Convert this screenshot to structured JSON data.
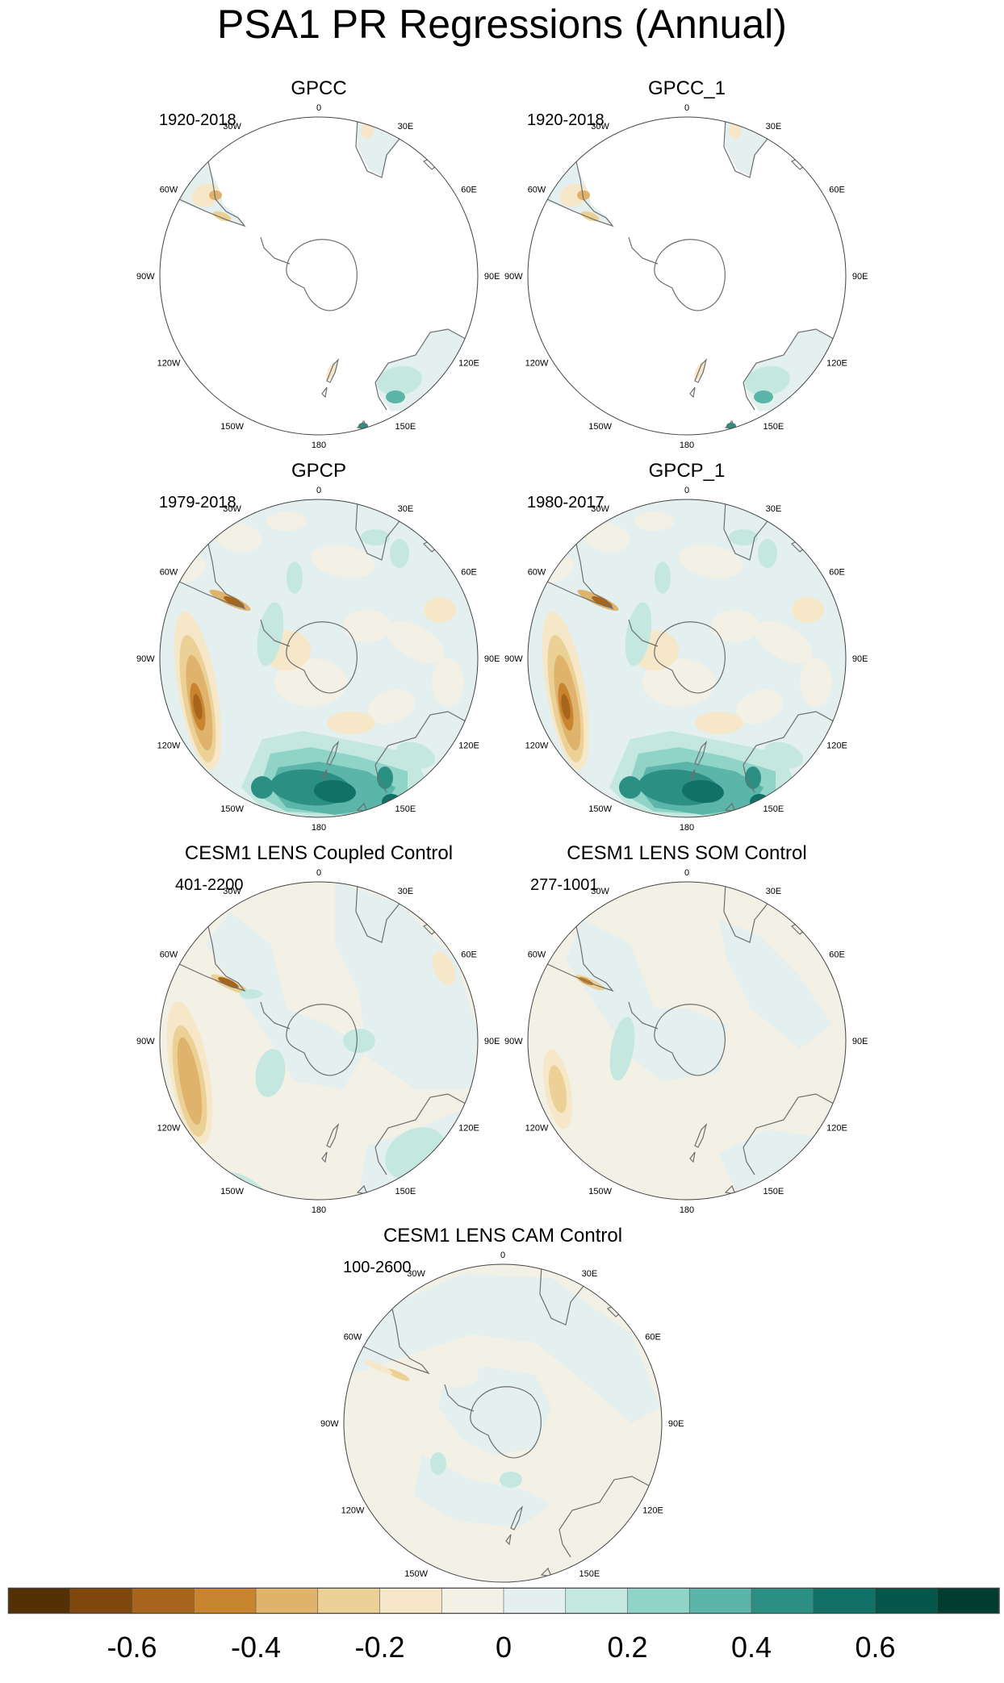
{
  "title": "PSA1 PR Regressions (Annual)",
  "lon_labels": [
    "0",
    "30E",
    "60E",
    "90E",
    "120E",
    "150E",
    "180",
    "150W",
    "120W",
    "90W",
    "60W",
    "30W"
  ],
  "panels": [
    {
      "id": "gpcc",
      "title": "GPCC",
      "period": "1920-2018",
      "pattern": "gpcc"
    },
    {
      "id": "gpcc_1",
      "title": "GPCC_1",
      "period": "1920-2018",
      "pattern": "gpcc"
    },
    {
      "id": "gpcp",
      "title": "GPCP",
      "period": "1979-2018",
      "pattern": "gpcp"
    },
    {
      "id": "gpcp_1",
      "title": "GPCP_1",
      "period": "1980-2017",
      "pattern": "gpcp"
    },
    {
      "id": "coupled",
      "title": "CESM1 LENS Coupled Control",
      "period": "401-2200",
      "pattern": "coupled"
    },
    {
      "id": "som",
      "title": "CESM1 LENS SOM Control",
      "period": "277-1001",
      "pattern": "som"
    },
    {
      "id": "cam",
      "title": "CESM1 LENS CAM Control",
      "period": "100-2600",
      "pattern": "cam"
    }
  ],
  "colorbar": {
    "colors": [
      "#543005",
      "#7f470c",
      "#a6651a",
      "#c8842f",
      "#dfb36b",
      "#ebd196",
      "#f5e7c8",
      "#f3f0e6",
      "#e3f0ef",
      "#c4e8e0",
      "#90d4c8",
      "#5bb5a8",
      "#2b8f84",
      "#117166",
      "#03564a",
      "#003c30"
    ],
    "ticks": [
      "-0.6",
      "-0.4",
      "-0.2",
      "0",
      "0.2",
      "0.4",
      "0.6"
    ],
    "tick_values": [
      -0.6,
      -0.4,
      -0.2,
      0,
      0.2,
      0.4,
      0.6
    ],
    "range": [
      -0.8,
      0.8
    ]
  }
}
